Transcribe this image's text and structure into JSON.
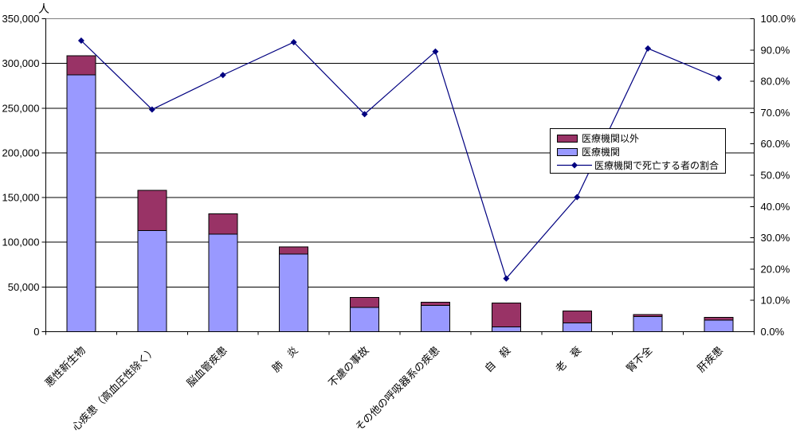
{
  "chart_data": {
    "type": "bar",
    "subtype": "stacked-bars-with-percentage-line",
    "categories": [
      "悪性新生物",
      "心疾患（高血圧性除く）",
      "脳血管疾患",
      "肺　炎",
      "不慮の事故",
      "その他の呼吸器系の疾患",
      "自　殺",
      "老　衰",
      "腎不全",
      "肝疾患"
    ],
    "series": [
      {
        "name": "医療機関",
        "color": "#9999FF",
        "axis": "left",
        "values": [
          287000,
          113000,
          109000,
          87000,
          27000,
          29500,
          5500,
          10000,
          17000,
          13000
        ]
      },
      {
        "name": "医療機関以外",
        "color": "#993366",
        "axis": "left",
        "values": [
          21500,
          45000,
          23000,
          8000,
          11500,
          3300,
          26500,
          13000,
          2000,
          3000
        ]
      }
    ],
    "line_series": {
      "name": "医療機関で死亡する者の割合",
      "color": "#000080",
      "marker": "diamond",
      "axis": "right",
      "values_percent": [
        93.0,
        71.0,
        82.0,
        92.5,
        69.5,
        89.5,
        17.0,
        43.0,
        90.5,
        81.0
      ]
    },
    "left_axis": {
      "unit": "人",
      "min": 0,
      "max": 350000,
      "step": 50000,
      "tick_labels": [
        "350,000",
        "300,000",
        "250,000",
        "200,000",
        "150,000",
        "100,000",
        "50,000",
        "0"
      ]
    },
    "right_axis": {
      "min_percent": 0,
      "max_percent": 100,
      "step_percent": 10,
      "tick_labels": [
        "100.0%",
        "90.0%",
        "80.0%",
        "70.0%",
        "60.0%",
        "50.0%",
        "40.0%",
        "30.0%",
        "20.0%",
        "10.0%",
        "0.0%"
      ]
    },
    "legend": {
      "position": "middle-right",
      "items": [
        {
          "label": "医療機関以外",
          "swatch": "rect",
          "color": "#993366"
        },
        {
          "label": "医療機関",
          "swatch": "rect",
          "color": "#9999FF"
        },
        {
          "label": "医療機関で死亡する者の割合",
          "swatch": "line-diamond",
          "color": "#000080"
        }
      ]
    },
    "grid": true,
    "gridline_color": "#000000",
    "plot_border_color": "#808080",
    "background_color": "#FFFFFF"
  }
}
